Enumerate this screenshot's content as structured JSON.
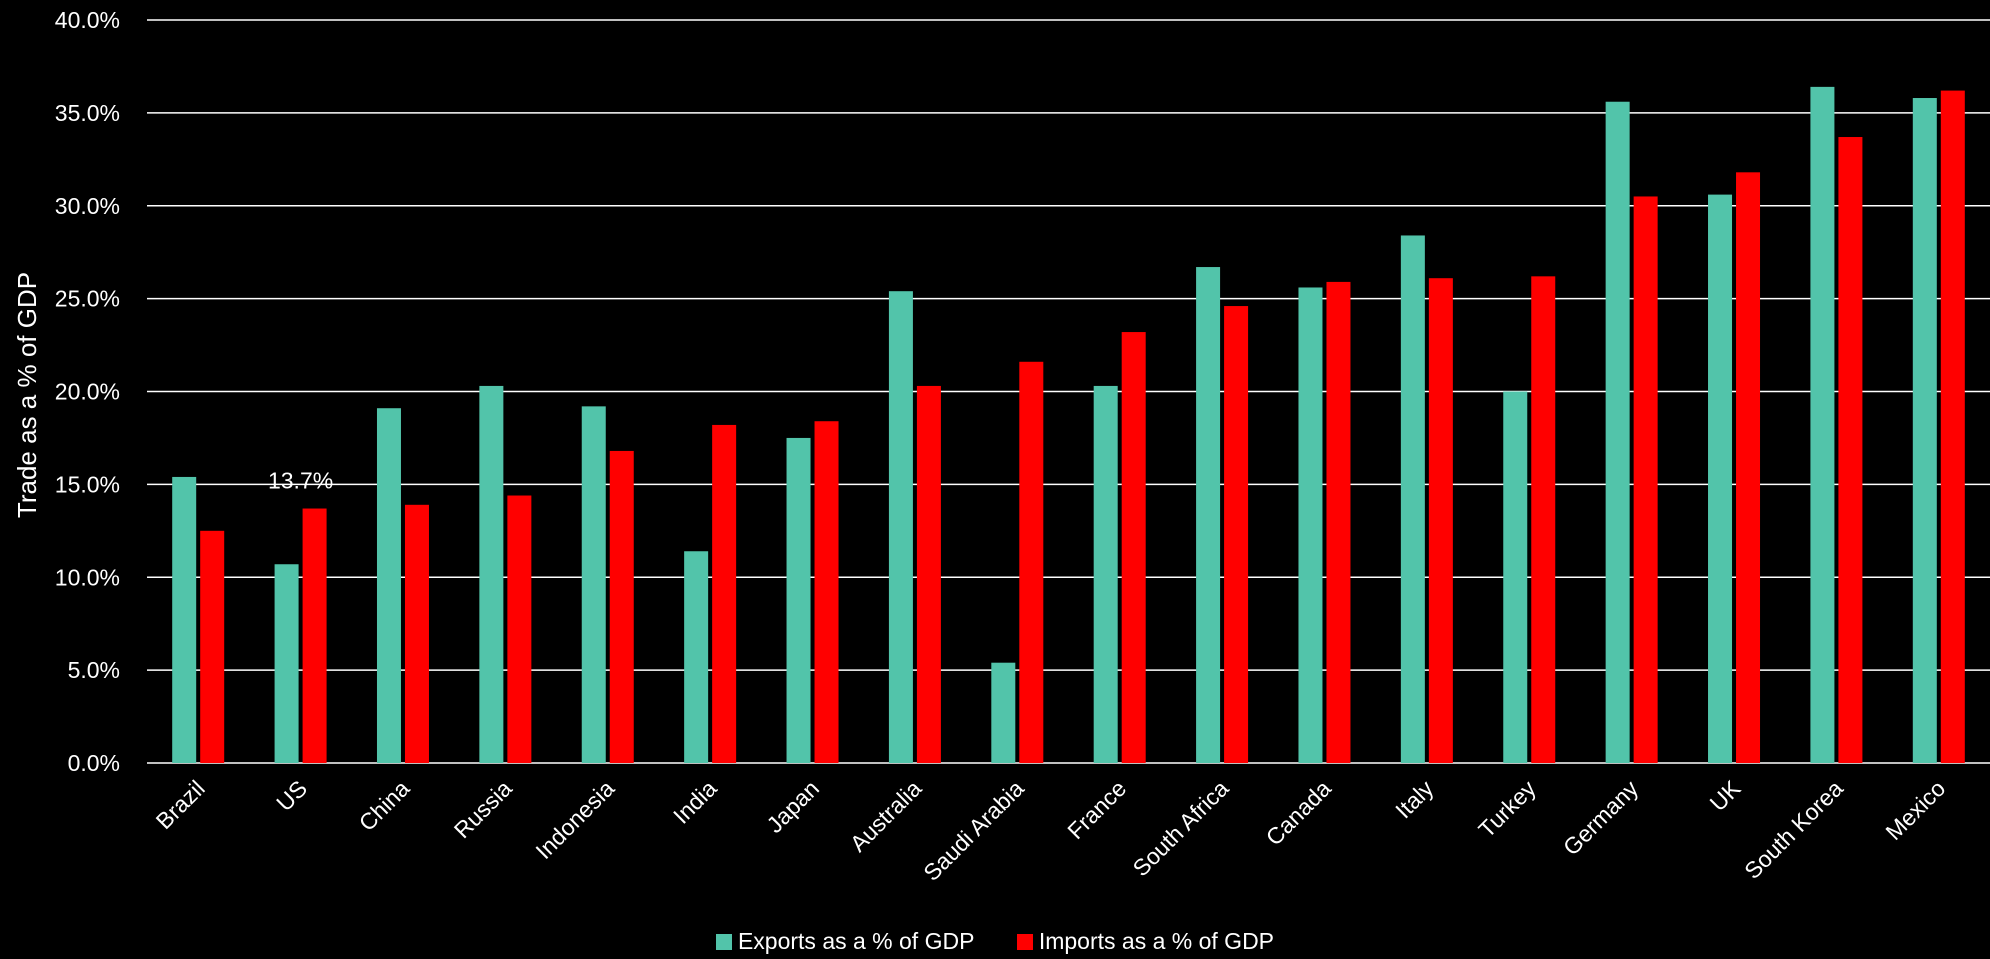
{
  "chart_data": {
    "type": "bar",
    "ylabel": "Trade as a % of GDP",
    "ylim": [
      0,
      40
    ],
    "yticks": [
      "0.0%",
      "5.0%",
      "10.0%",
      "15.0%",
      "20.0%",
      "25.0%",
      "30.0%",
      "35.0%",
      "40.0%"
    ],
    "grid": true,
    "legend_position": "bottom-center",
    "categories": [
      "Brazil",
      "US",
      "China",
      "Russia",
      "Indonesia",
      "India",
      "Japan",
      "Australia",
      "Saudi Arabia",
      "France",
      "South Africa",
      "Canada",
      "Italy",
      "Turkey",
      "Germany",
      "UK",
      "South Korea",
      "Mexico"
    ],
    "series": [
      {
        "name": "Exports as a % of GDP",
        "color": "#52c4aa",
        "values": [
          15.4,
          10.7,
          19.1,
          20.3,
          19.2,
          11.4,
          17.5,
          25.4,
          5.4,
          20.3,
          26.7,
          25.6,
          28.4,
          20.0,
          35.6,
          30.6,
          36.4,
          35.8
        ]
      },
      {
        "name": "Imports as a % of GDP",
        "color": "#ff0000",
        "values": [
          12.5,
          13.7,
          13.9,
          14.4,
          16.8,
          18.2,
          18.4,
          20.3,
          21.6,
          23.2,
          24.6,
          25.9,
          26.1,
          26.2,
          30.5,
          31.8,
          33.7,
          36.2
        ]
      }
    ],
    "annotations": [
      {
        "category": "US",
        "text": "13.7%"
      }
    ]
  }
}
